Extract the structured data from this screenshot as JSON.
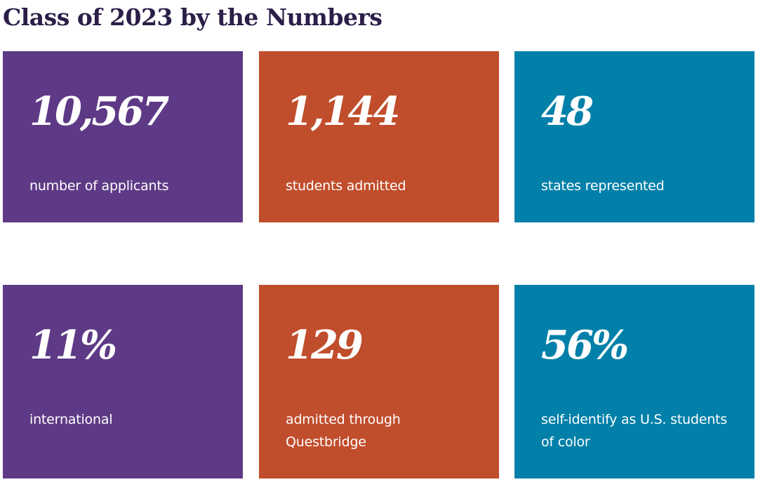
{
  "page": {
    "title": "Class of 2023 by the Numbers"
  },
  "stats": [
    {
      "value": "10,567",
      "label": "number of applicants"
    },
    {
      "value": "1,144",
      "label": "students admitted"
    },
    {
      "value": "48",
      "label": "states represented"
    },
    {
      "value": "11%",
      "label": "international"
    },
    {
      "value": "129",
      "label": "admitted through Questbridge"
    },
    {
      "value": "56%",
      "label": "self-identify as U.S. students of color"
    }
  ],
  "colors": {
    "purple": "#5e3a86",
    "orange": "#c04d2b",
    "teal": "#0280a9",
    "title": "#2b1e48"
  }
}
